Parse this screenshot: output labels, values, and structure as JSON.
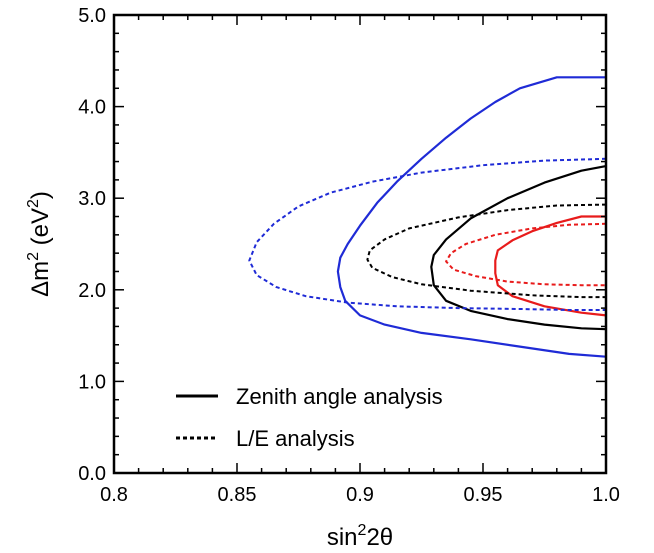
{
  "chart_data": {
    "type": "line",
    "title": "",
    "xlabel": "sin²2θ",
    "xlabel_parts": {
      "base": "sin",
      "exp": "2",
      "rest": "2θ"
    },
    "ylabel": "Δm² (eV²)",
    "ylabel_parts": {
      "pre": "Δm",
      "exp1": "2",
      "mid": " (eV",
      "exp2": "2",
      "post": ")"
    },
    "xlim": [
      0.8,
      1.0
    ],
    "ylim": [
      0.0,
      5.0
    ],
    "xticks": [
      0.8,
      0.85,
      0.9,
      0.95,
      1.0
    ],
    "xtick_labels": [
      "0.8",
      "0.85",
      "0.9",
      "0.95",
      "1.0"
    ],
    "yticks": [
      0.0,
      1.0,
      2.0,
      3.0,
      4.0,
      5.0
    ],
    "ytick_labels": [
      "0.0",
      "1.0",
      "2.0",
      "3.0",
      "4.0",
      "5.0"
    ],
    "grid": false,
    "legend": {
      "placement": "bottom-left",
      "entries": [
        {
          "label": "Zenith angle analysis",
          "style": "solid"
        },
        {
          "label": "L/E analysis",
          "style": "dotted"
        }
      ]
    },
    "series": [
      {
        "name": "Zenith angle analysis (blue)",
        "color": "#1f2bd6",
        "style": "solid",
        "x": [
          1.0,
          0.98,
          0.965,
          0.955,
          0.945,
          0.935,
          0.925,
          0.915,
          0.907,
          0.9,
          0.895,
          0.892,
          0.891,
          0.892,
          0.894,
          0.9,
          0.91,
          0.925,
          0.945,
          0.965,
          0.985,
          1.0
        ],
        "y": [
          4.32,
          4.32,
          4.2,
          4.05,
          3.87,
          3.66,
          3.43,
          3.18,
          2.95,
          2.7,
          2.5,
          2.35,
          2.2,
          2.03,
          1.88,
          1.72,
          1.62,
          1.53,
          1.46,
          1.38,
          1.3,
          1.27
        ]
      },
      {
        "name": "Zenith angle analysis (black)",
        "color": "#000000",
        "style": "solid",
        "x": [
          1.0,
          0.99,
          0.975,
          0.96,
          0.945,
          0.935,
          0.93,
          0.929,
          0.93,
          0.935,
          0.945,
          0.96,
          0.975,
          0.99,
          1.0
        ],
        "y": [
          3.35,
          3.3,
          3.17,
          3.0,
          2.78,
          2.55,
          2.38,
          2.25,
          2.05,
          1.88,
          1.77,
          1.68,
          1.62,
          1.58,
          1.57
        ]
      },
      {
        "name": "Zenith angle analysis (red)",
        "color": "#e81b1b",
        "style": "solid",
        "x": [
          1.0,
          0.99,
          0.98,
          0.97,
          0.962,
          0.956,
          0.955,
          0.955,
          0.956,
          0.962,
          0.975,
          0.99,
          1.0
        ],
        "y": [
          2.8,
          2.8,
          2.73,
          2.64,
          2.54,
          2.43,
          2.32,
          2.18,
          2.05,
          1.93,
          1.82,
          1.75,
          1.72
        ]
      },
      {
        "name": "L/E analysis (blue)",
        "color": "#1f2bd6",
        "style": "dotted",
        "x": [
          1.0,
          0.975,
          0.95,
          0.925,
          0.905,
          0.888,
          0.875,
          0.865,
          0.858,
          0.855,
          0.858,
          0.866,
          0.878,
          0.895,
          0.915,
          0.94,
          0.965,
          0.985,
          1.0
        ],
        "y": [
          3.43,
          3.41,
          3.36,
          3.28,
          3.18,
          3.06,
          2.91,
          2.72,
          2.52,
          2.32,
          2.16,
          2.03,
          1.93,
          1.86,
          1.82,
          1.8,
          1.79,
          1.78,
          1.78
        ]
      },
      {
        "name": "L/E analysis (black)",
        "color": "#000000",
        "style": "dotted",
        "x": [
          1.0,
          0.98,
          0.96,
          0.94,
          0.92,
          0.91,
          0.904,
          0.903,
          0.905,
          0.913,
          0.925,
          0.945,
          0.97,
          0.99,
          1.0
        ],
        "y": [
          2.93,
          2.92,
          2.87,
          2.79,
          2.67,
          2.55,
          2.43,
          2.33,
          2.24,
          2.14,
          2.06,
          1.99,
          1.94,
          1.92,
          1.92
        ]
      },
      {
        "name": "L/E analysis (red)",
        "color": "#e81b1b",
        "style": "dotted",
        "x": [
          1.0,
          0.985,
          0.97,
          0.955,
          0.943,
          0.937,
          0.935,
          0.938,
          0.947,
          0.96,
          0.975,
          0.99,
          1.0
        ],
        "y": [
          2.72,
          2.71,
          2.67,
          2.6,
          2.5,
          2.4,
          2.31,
          2.22,
          2.15,
          2.09,
          2.06,
          2.05,
          2.05
        ]
      }
    ]
  }
}
